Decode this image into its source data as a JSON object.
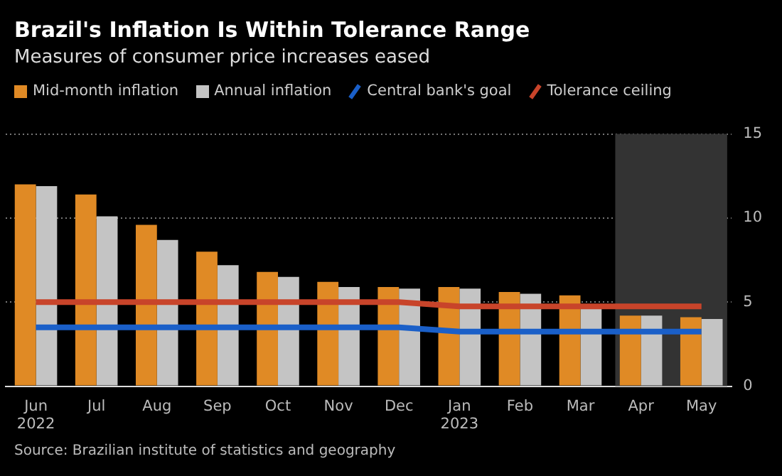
{
  "chart_data": {
    "type": "bar",
    "title": "Brazil's Inflation Is Within Tolerance Range",
    "subtitle": "Measures of consumer price increases eased",
    "categories": [
      "Jun\n2022",
      "Jul",
      "Aug",
      "Sep",
      "Oct",
      "Nov",
      "Dec",
      "Jan\n2023",
      "Feb",
      "Mar",
      "Apr",
      "May"
    ],
    "series": [
      {
        "name": "Mid-month inflation",
        "color": "#e08a25",
        "values": [
          12.0,
          11.4,
          9.6,
          8.0,
          6.8,
          6.2,
          5.9,
          5.9,
          5.6,
          5.4,
          4.2,
          4.1
        ]
      },
      {
        "name": "Annual inflation",
        "color": "#c4c4c4",
        "values": [
          11.9,
          10.1,
          8.7,
          7.2,
          6.5,
          5.9,
          5.8,
          5.8,
          5.5,
          4.6,
          4.2,
          4.0
        ]
      },
      {
        "name": "Central bank's goal",
        "type": "line",
        "color": "#1a5fc8",
        "values": [
          3.5,
          3.5,
          3.5,
          3.5,
          3.5,
          3.5,
          3.5,
          3.25,
          3.25,
          3.25,
          3.25,
          3.25
        ]
      },
      {
        "name": "Tolerance ceiling",
        "type": "line",
        "color": "#c8442a",
        "values": [
          5.0,
          5.0,
          5.0,
          5.0,
          5.0,
          5.0,
          5.0,
          4.75,
          4.75,
          4.75,
          4.75,
          4.75
        ]
      }
    ],
    "ylim": [
      0,
      15
    ],
    "yticks": [
      0,
      5,
      10,
      15
    ],
    "grid": "y",
    "legend": "top left",
    "marker": "none",
    "bands": [
      {
        "axis": "x",
        "from": "Apr",
        "to": "May",
        "color": "#333333"
      }
    ],
    "annotations": [
      "Source: Brazilian institute of statistics and geography"
    ]
  }
}
